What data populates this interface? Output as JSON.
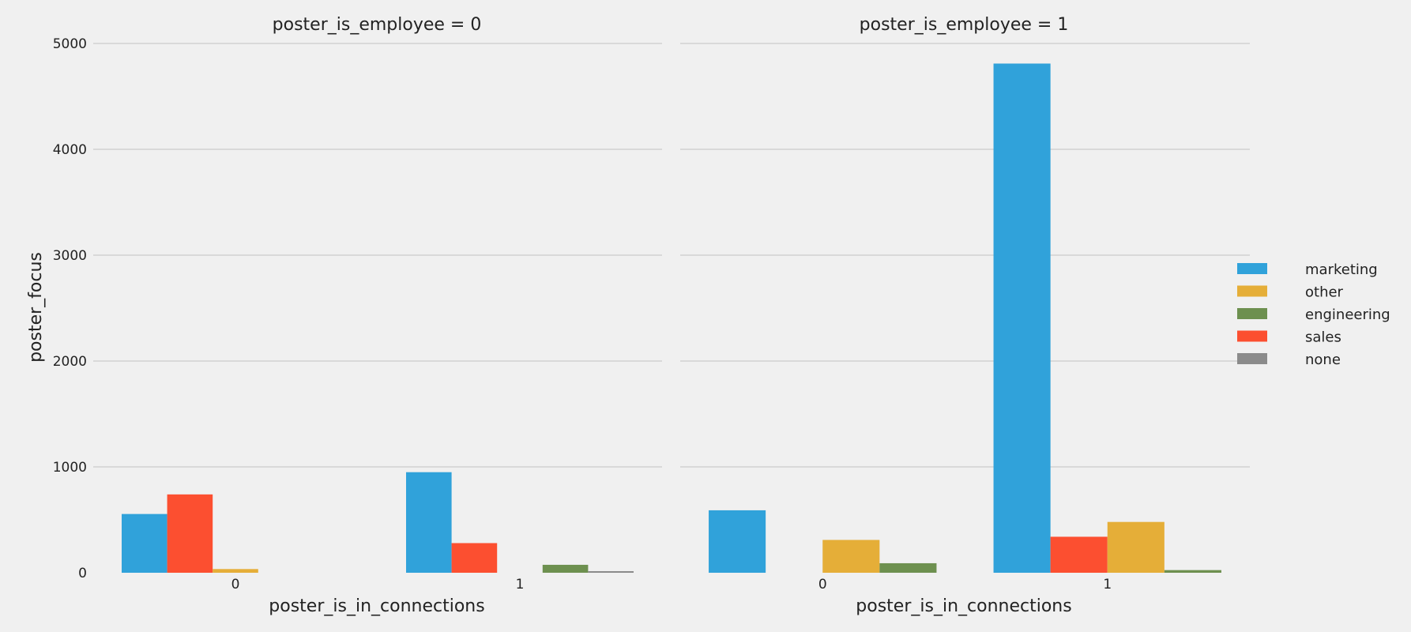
{
  "chart_data": {
    "type": "bar",
    "ylabel": "poster_focus",
    "ylim": [
      0,
      5000
    ],
    "yticks": [
      0,
      1000,
      2000,
      3000,
      4000,
      5000
    ],
    "grid": true,
    "legend_position": "right",
    "legend": [
      {
        "name": "marketing",
        "color": "#30a2da"
      },
      {
        "name": "other",
        "color": "#e5ae38"
      },
      {
        "name": "engineering",
        "color": "#6d904f"
      },
      {
        "name": "sales",
        "color": "#fc4f30"
      },
      {
        "name": "none",
        "color": "#8b8b8b"
      }
    ],
    "panels": [
      {
        "title": "poster_is_employee = 0",
        "xlabel": "poster_is_in_connections",
        "categories": [
          "0",
          "1"
        ],
        "hue_order": [
          "marketing",
          "sales",
          "other",
          "engineering",
          "none"
        ],
        "series": [
          {
            "name": "marketing",
            "values": [
              555,
              950
            ]
          },
          {
            "name": "sales",
            "values": [
              740,
              280
            ]
          },
          {
            "name": "other",
            "values": [
              35,
              0
            ]
          },
          {
            "name": "engineering",
            "values": [
              0,
              75
            ]
          },
          {
            "name": "none",
            "values": [
              0,
              15
            ]
          }
        ]
      },
      {
        "title": "poster_is_employee = 1",
        "xlabel": "poster_is_in_connections",
        "categories": [
          "0",
          "1"
        ],
        "hue_order": [
          "marketing",
          "sales",
          "other",
          "engineering"
        ],
        "series": [
          {
            "name": "marketing",
            "values": [
              590,
              4810
            ]
          },
          {
            "name": "sales",
            "values": [
              0,
              340
            ]
          },
          {
            "name": "other",
            "values": [
              310,
              480
            ]
          },
          {
            "name": "engineering",
            "values": [
              90,
              25
            ]
          }
        ]
      }
    ]
  }
}
